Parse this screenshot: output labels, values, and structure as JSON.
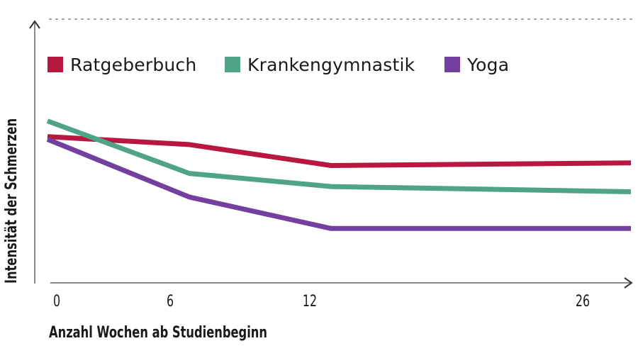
{
  "chart_data": {
    "type": "line",
    "title": "",
    "xlabel": "Anzahl Wochen ab Studienbeginn",
    "ylabel": "Intensität der Schmerzen",
    "x": [
      0,
      6,
      12,
      26
    ],
    "x_tick_labels": [
      "0",
      "6",
      "12",
      "26"
    ],
    "y_ticks_shown": false,
    "y_scale_note": "relative intensity, no numeric axis ticks (estimated on 0–10 scale)",
    "ylim": [
      0,
      10
    ],
    "grid": false,
    "reference_line": "dotted horizontal line at top of y-axis",
    "legend_position": "top",
    "series": [
      {
        "name": "Ratgeberbuch",
        "color": "#B8173F",
        "values": [
          5.6,
          5.3,
          4.5,
          4.6
        ]
      },
      {
        "name": "Krankengymnastik",
        "color": "#4FA386",
        "values": [
          6.2,
          4.2,
          3.7,
          3.5
        ]
      },
      {
        "name": "Yoga",
        "color": "#7340A0",
        "values": [
          5.5,
          3.3,
          2.1,
          2.1
        ]
      }
    ]
  },
  "legend": {
    "items": [
      {
        "label": "Ratgeberbuch",
        "color": "#B8173F"
      },
      {
        "label": "Krankengymnastik",
        "color": "#4FA386"
      },
      {
        "label": "Yoga",
        "color": "#7340A0"
      }
    ]
  },
  "axes": {
    "x_label": "Anzahl Wochen ab Studienbeginn",
    "y_label": "Intensität der Schmerzen",
    "x_ticks": [
      "0",
      "6",
      "12",
      "26"
    ]
  }
}
